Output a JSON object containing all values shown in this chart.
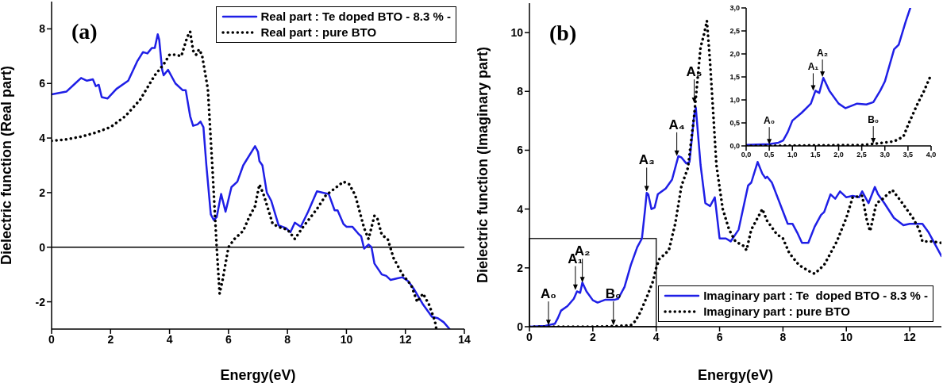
{
  "chart_data": [
    {
      "type": "line",
      "xlabel": "Energy(eV)",
      "ylabel": "Dielectric function (Real part)",
      "xlim": [
        0,
        14
      ],
      "xticks": [
        0,
        2,
        4,
        6,
        8,
        10,
        12,
        14
      ],
      "ylim": [
        -3,
        9
      ],
      "yticks": [
        -2,
        0,
        2,
        4,
        6,
        8
      ],
      "grid": false,
      "legend": "top right",
      "marker": "none",
      "annotations": [
        "(a)"
      ],
      "ref_lines": [
        {
          "axis": "y",
          "value": 0,
          "color": "#000000"
        }
      ],
      "series": [
        {
          "name": "Real part : Te doped BTO - 8.3 % -",
          "color": "#1f1fe6",
          "line_style": "solid",
          "x": [
            0,
            0.5,
            0.8,
            1.0,
            1.2,
            1.4,
            1.5,
            1.6,
            1.7,
            1.9,
            2.2,
            2.6,
            2.9,
            3.1,
            3.25,
            3.4,
            3.5,
            3.6,
            3.65,
            3.75,
            3.8,
            3.95,
            4.2,
            4.45,
            4.55,
            4.7,
            4.8,
            4.95,
            5.05,
            5.15,
            5.25,
            5.4,
            5.5,
            5.6,
            5.75,
            5.9,
            6.1,
            6.3,
            6.5,
            6.9,
            7.0,
            7.05,
            7.15,
            7.3,
            7.45,
            7.7,
            7.95,
            8.1,
            8.25,
            8.45,
            8.7,
            9.0,
            9.2,
            9.4,
            9.6,
            9.7,
            9.9,
            10.0,
            10.2,
            10.4,
            10.5,
            10.6,
            10.75,
            10.85,
            10.95,
            11.2,
            11.35,
            11.5,
            11.7,
            11.9,
            12.1,
            12.3,
            12.6,
            12.9,
            13.1,
            13.3,
            13.5
          ],
          "values": [
            5.6,
            5.7,
            6.0,
            6.2,
            6.1,
            6.15,
            5.9,
            5.95,
            5.5,
            5.45,
            5.8,
            6.1,
            6.8,
            7.15,
            7.1,
            7.3,
            7.3,
            7.8,
            7.6,
            6.5,
            6.3,
            6.5,
            6.0,
            5.75,
            5.75,
            4.8,
            4.45,
            4.5,
            4.6,
            4.4,
            3.0,
            1.2,
            1.0,
            1.1,
            1.95,
            1.3,
            2.2,
            2.4,
            3.0,
            3.7,
            3.5,
            3.15,
            3.0,
            2.0,
            1.7,
            0.8,
            0.7,
            0.55,
            0.9,
            0.75,
            1.3,
            2.05,
            2.0,
            1.95,
            1.35,
            1.35,
            0.85,
            0.75,
            0.75,
            0.5,
            0.4,
            -0.05,
            0.1,
            0.0,
            -0.6,
            -1.0,
            -1.05,
            -1.2,
            -1.15,
            -1.1,
            -1.25,
            -1.55,
            -2.1,
            -2.55,
            -2.6,
            -2.75,
            -3.0
          ]
        },
        {
          "name": "Real part : pure BTO",
          "color": "#000000",
          "line_style": "dotted",
          "x": [
            0,
            0.5,
            1.0,
            1.5,
            2.0,
            2.5,
            3.0,
            3.5,
            3.8,
            4.0,
            4.2,
            4.4,
            4.6,
            4.7,
            4.8,
            4.9,
            5.0,
            5.1,
            5.3,
            5.45,
            5.6,
            5.7,
            5.8,
            6.0,
            6.2,
            6.5,
            6.7,
            6.9,
            7.05,
            7.2,
            7.5,
            7.8,
            8.0,
            8.25,
            8.5,
            9.0,
            9.3,
            9.6,
            9.9,
            10.1,
            10.3,
            10.6,
            10.75,
            10.95,
            11.05,
            11.2,
            11.4,
            11.6,
            11.9,
            12.2,
            12.4,
            12.6,
            12.8,
            13.0,
            13.05
          ],
          "values": [
            3.9,
            3.95,
            4.05,
            4.2,
            4.4,
            4.8,
            5.4,
            6.3,
            6.7,
            7.05,
            7.05,
            7.0,
            7.7,
            7.9,
            7.2,
            7.05,
            7.25,
            7.05,
            5.8,
            3.0,
            0.0,
            -1.7,
            -1.2,
            0.0,
            0.3,
            0.6,
            1.1,
            1.5,
            2.3,
            1.9,
            0.85,
            0.7,
            0.65,
            0.3,
            0.7,
            1.4,
            1.9,
            2.15,
            2.4,
            2.3,
            1.9,
            0.7,
            0.3,
            1.15,
            1.05,
            0.45,
            0.3,
            -0.4,
            -1.0,
            -1.4,
            -2.0,
            -1.7,
            -2.1,
            -2.7,
            -3.0
          ]
        }
      ]
    },
    {
      "type": "line",
      "xlabel": "Energy(eV)",
      "ylabel": "Dielectric function (Imaginary part)",
      "xlim": [
        0,
        13
      ],
      "xticks": [
        0,
        2,
        4,
        6,
        8,
        10,
        12
      ],
      "ylim": [
        0,
        11
      ],
      "yticks": [
        0,
        2,
        4,
        6,
        8,
        10
      ],
      "grid": false,
      "legend": "bottom right",
      "marker": "none",
      "annotations": [
        "(b)",
        {
          "text": "A₀",
          "x": 0.6,
          "y": 0.05
        },
        {
          "text": "A₁",
          "x": 1.45,
          "y": 1.25
        },
        {
          "text": "A₂",
          "x": 1.67,
          "y": 1.5
        },
        {
          "text": "B₀",
          "x": 2.65,
          "y": 0.05
        },
        {
          "text": "A₃",
          "x": 3.7,
          "y": 4.6
        },
        {
          "text": "A₄",
          "x": 4.65,
          "y": 5.8
        },
        {
          "text": "A₅",
          "x": 5.2,
          "y": 7.6
        }
      ],
      "series": [
        {
          "name": "Imaginary part : Te  doped BTO - 8.3 % -",
          "color": "#1f1fe6",
          "line_style": "solid",
          "x": [
            0,
            0.5,
            0.8,
            0.9,
            1.0,
            1.2,
            1.4,
            1.5,
            1.6,
            1.67,
            1.8,
            2.0,
            2.15,
            2.4,
            2.7,
            2.8,
            3.0,
            3.2,
            3.4,
            3.55,
            3.65,
            3.7,
            3.75,
            3.85,
            3.95,
            4.05,
            4.3,
            4.5,
            4.7,
            4.8,
            4.95,
            5.05,
            5.2,
            5.25,
            5.4,
            5.55,
            5.7,
            5.85,
            6.0,
            6.2,
            6.35,
            6.6,
            6.9,
            7.0,
            7.2,
            7.35,
            7.45,
            7.5,
            7.65,
            7.9,
            8.15,
            8.3,
            8.45,
            8.6,
            8.8,
            9.0,
            9.2,
            9.3,
            9.5,
            9.65,
            9.8,
            10.0,
            10.2,
            10.4,
            10.5,
            10.7,
            10.9,
            11.0,
            11.2,
            11.5,
            11.8,
            12.0,
            12.2,
            12.4,
            12.6,
            12.8,
            13.0
          ],
          "values": [
            0.0,
            0.03,
            0.1,
            0.3,
            0.55,
            0.7,
            0.95,
            1.2,
            1.15,
            1.5,
            1.2,
            0.9,
            0.82,
            0.92,
            0.92,
            0.95,
            1.35,
            2.1,
            2.7,
            3.0,
            4.0,
            4.55,
            4.5,
            4.0,
            4.05,
            4.5,
            4.7,
            5.0,
            5.8,
            5.75,
            5.55,
            5.6,
            7.2,
            7.45,
            5.5,
            4.2,
            4.1,
            4.4,
            3.0,
            3.0,
            2.9,
            3.3,
            4.8,
            4.9,
            5.6,
            5.2,
            5.05,
            5.1,
            4.9,
            4.2,
            3.5,
            3.5,
            3.2,
            2.85,
            2.85,
            3.4,
            3.8,
            3.9,
            4.5,
            4.35,
            4.6,
            4.4,
            4.45,
            4.4,
            4.6,
            4.2,
            4.75,
            4.5,
            4.2,
            3.7,
            3.45,
            3.5,
            3.5,
            3.5,
            3.2,
            2.8,
            2.4
          ]
        },
        {
          "name": "Imaginary part : pure BTO",
          "color": "#000000",
          "line_style": "dotted",
          "x": [
            0,
            2.0,
            2.7,
            3.2,
            3.35,
            3.5,
            3.7,
            3.9,
            4.0,
            4.1,
            4.4,
            4.6,
            4.8,
            5.0,
            5.2,
            5.4,
            5.5,
            5.6,
            5.7,
            5.9,
            6.1,
            6.3,
            6.5,
            6.75,
            6.85,
            7.0,
            7.2,
            7.35,
            7.5,
            7.8,
            8.0,
            8.2,
            8.5,
            8.8,
            9.0,
            9.3,
            9.7,
            10.0,
            10.2,
            10.5,
            10.65,
            10.75,
            10.95,
            11.1,
            11.45,
            11.7,
            12.1,
            12.3,
            12.4,
            12.7,
            13.0
          ],
          "values": [
            0,
            0.0,
            0.02,
            0.05,
            0.2,
            0.5,
            1.0,
            1.55,
            2.0,
            2.3,
            2.6,
            3.5,
            4.8,
            5.4,
            7.2,
            9.5,
            9.9,
            10.4,
            9.0,
            5.5,
            4.0,
            3.3,
            2.9,
            2.75,
            2.6,
            3.3,
            3.7,
            4.0,
            3.6,
            3.15,
            3.0,
            2.5,
            2.1,
            1.9,
            1.8,
            2.1,
            2.9,
            3.7,
            4.4,
            4.45,
            3.6,
            3.25,
            4.2,
            4.3,
            4.65,
            4.3,
            3.7,
            3.3,
            2.9,
            2.9,
            2.85
          ]
        }
      ]
    },
    {
      "type": "line",
      "xlim": [
        0,
        4
      ],
      "xticks": [
        {
          "value": 0,
          "label": "0,0"
        },
        {
          "value": 0.5,
          "label": "0,5"
        },
        {
          "value": 1,
          "label": "1,0"
        },
        {
          "value": 1.5,
          "label": "1,5"
        },
        {
          "value": 2,
          "label": "2,0"
        },
        {
          "value": 2.5,
          "label": "2,5"
        },
        {
          "value": 3,
          "label": "3,0"
        },
        {
          "value": 3.5,
          "label": "3,5"
        },
        {
          "value": 4,
          "label": "4,0"
        }
      ],
      "ylim": [
        0,
        3
      ],
      "yticks": [
        {
          "value": 0,
          "label": "0,0"
        },
        {
          "value": 0.5,
          "label": "0,5"
        },
        {
          "value": 1,
          "label": "1,0"
        },
        {
          "value": 1.5,
          "label": "1,5"
        },
        {
          "value": 2,
          "label": "2,0"
        },
        {
          "value": 2.5,
          "label": "2,5"
        },
        {
          "value": 3,
          "label": "3,0"
        }
      ],
      "grid": false,
      "legend": false,
      "marker": "none",
      "annotations": [
        {
          "text": "A₀",
          "x": 0.5,
          "y": 0.03
        },
        {
          "text": "A₁",
          "x": 1.45,
          "y": 1.2
        },
        {
          "text": "A₂",
          "x": 1.65,
          "y": 1.5
        },
        {
          "text": "B₀",
          "x": 2.75,
          "y": 0.05
        }
      ],
      "series": [
        {
          "color": "#1f1fe6",
          "line_style": "solid",
          "x": [
            0,
            0.5,
            0.7,
            0.8,
            0.9,
            1.0,
            1.2,
            1.4,
            1.5,
            1.58,
            1.67,
            1.8,
            2.0,
            2.15,
            2.4,
            2.6,
            2.75,
            2.9,
            3.0,
            3.2,
            3.3,
            3.45,
            3.55
          ],
          "values": [
            0.02,
            0.04,
            0.07,
            0.12,
            0.3,
            0.55,
            0.72,
            0.92,
            1.2,
            1.15,
            1.48,
            1.2,
            0.92,
            0.82,
            0.92,
            0.9,
            0.95,
            1.2,
            1.4,
            2.1,
            2.2,
            2.7,
            3.0
          ]
        },
        {
          "color": "#000000",
          "line_style": "dotted",
          "x": [
            0,
            2.5,
            2.8,
            3.2,
            3.4,
            3.5,
            3.7,
            3.85,
            4.0
          ],
          "values": [
            0.0,
            0.02,
            0.05,
            0.1,
            0.2,
            0.45,
            0.9,
            1.2,
            1.55
          ]
        }
      ]
    }
  ]
}
